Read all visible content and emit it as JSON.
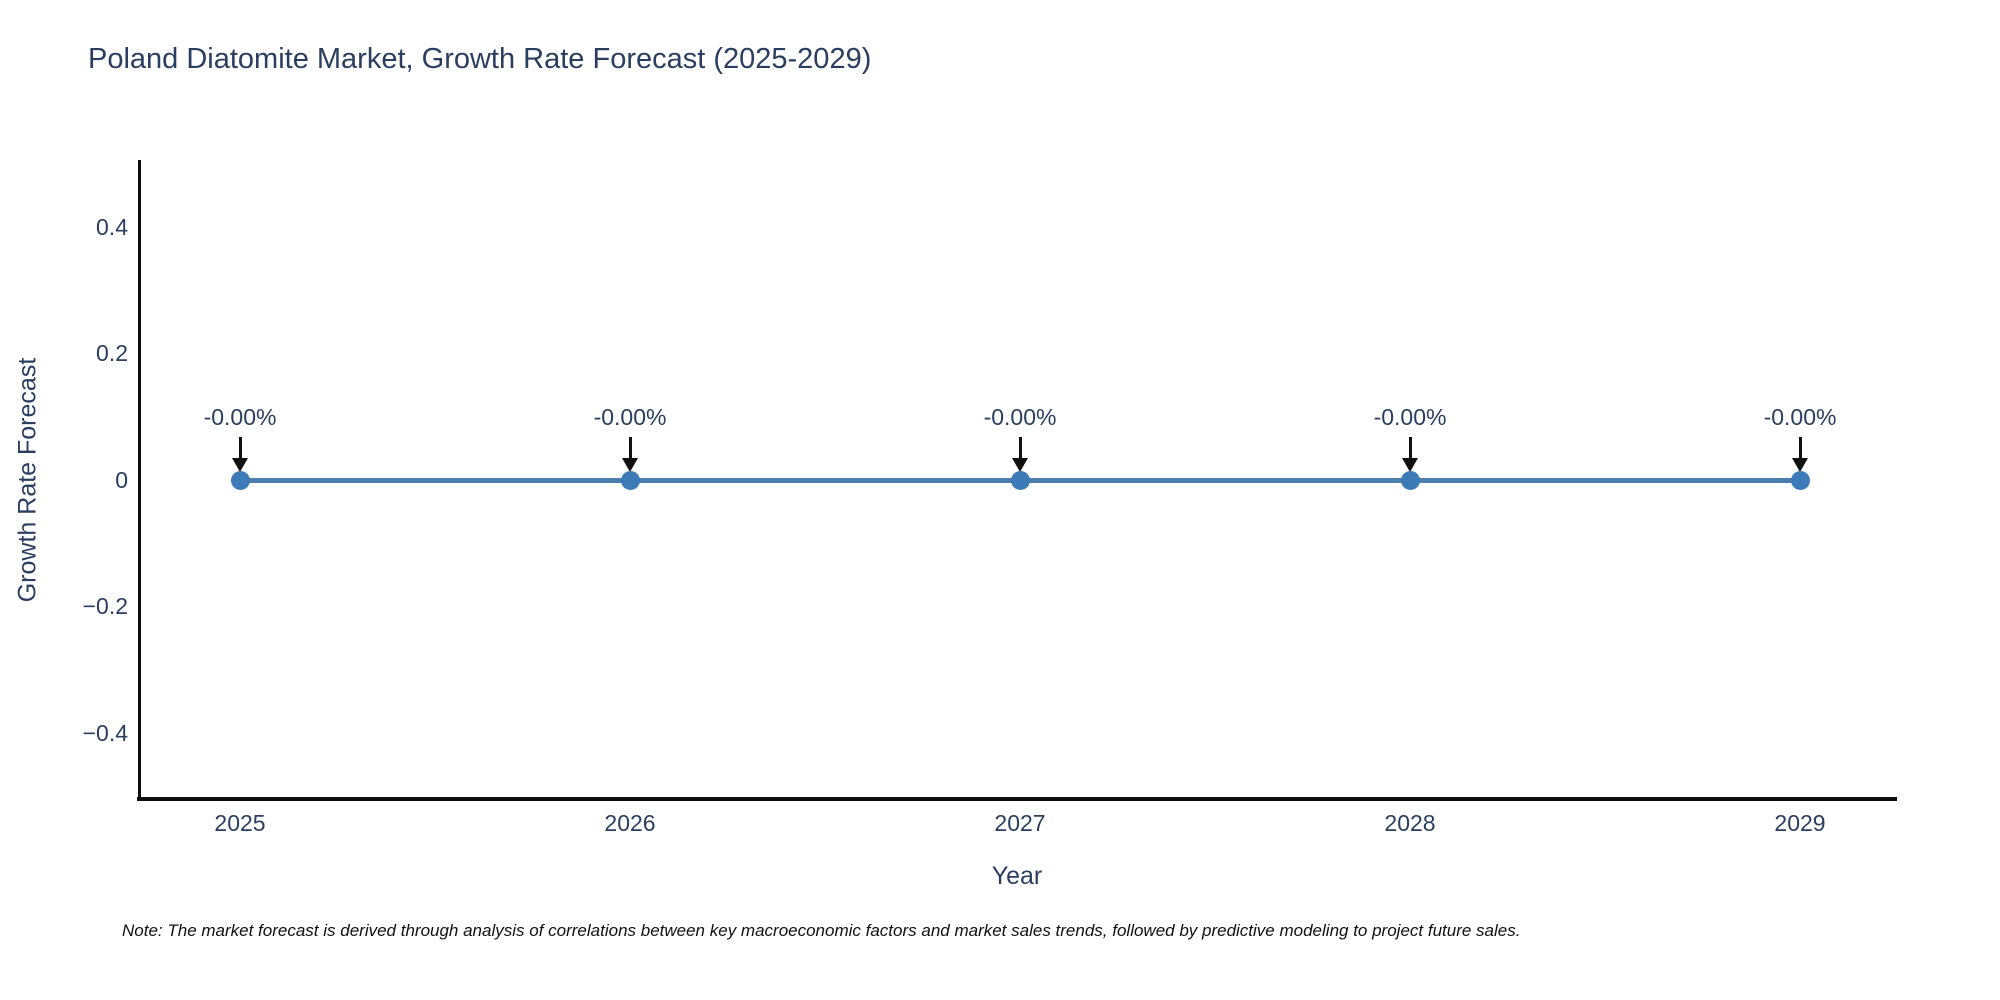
{
  "chart": {
    "note": "Note: The market forecast is derived through analysis of correlations between key macroeconomic factors and market sales trends, followed by predictive modeling to project future sales."
  },
  "chart_data": {
    "type": "line",
    "title": "Poland Diatomite Market, Growth Rate Forecast (2025-2029)",
    "xlabel": "Year",
    "ylabel": "Growth Rate Forecast",
    "x": [
      2025,
      2026,
      2027,
      2028,
      2029
    ],
    "series": [
      {
        "name": "Growth Rate Forecast",
        "values": [
          0,
          0,
          0,
          0,
          0
        ]
      }
    ],
    "point_labels": [
      "-0.00%",
      "-0.00%",
      "-0.00%",
      "-0.00%",
      "-0.00%"
    ],
    "xtick_labels": [
      "2025",
      "2026",
      "2027",
      "2028",
      "2029"
    ],
    "yticks": [
      0.4,
      0.2,
      0,
      -0.2,
      -0.4
    ],
    "ytick_labels": [
      "0.4",
      "0.2",
      "0",
      "−0.2",
      "−0.4"
    ],
    "ylim": [
      -0.5,
      0.5
    ],
    "grid": false,
    "legend": false,
    "colors": {
      "line": "#4b7ead",
      "marker": "#3d7ab8",
      "annotation_arrow": "#111111",
      "text": "#2a3f5f",
      "spine": "#0d0d0d"
    }
  }
}
